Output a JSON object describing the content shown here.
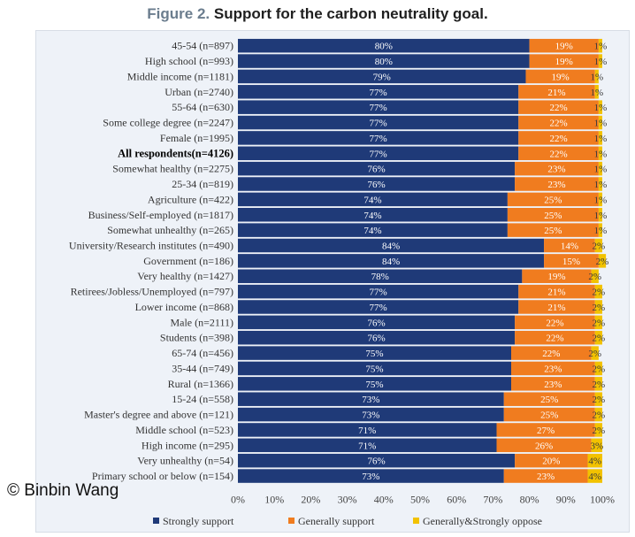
{
  "figure": {
    "number": "Figure 2.",
    "title": "Support for the carbon neutrality goal."
  },
  "copyright": "© Binbin Wang",
  "colors": {
    "strongly_support": "#1f3a78",
    "generally_support": "#f07c1f",
    "oppose": "#f2c200",
    "bold_label": "#000000"
  },
  "chart_data": {
    "type": "bar",
    "orientation": "horizontal",
    "stacked": true,
    "categories": [
      "45-54 (n=897)",
      "High school (n=993)",
      "Middle income (n=1181)",
      "Urban (n=2740)",
      "55-64 (n=630)",
      "Some college degree (n=2247)",
      "Female (n=1995)",
      "All respondents(n=4126)",
      "Somewhat healthy (n=2275)",
      "25-34 (n=819)",
      "Agriculture (n=422)",
      "Business/Self-employed (n=1817)",
      "Somewhat unhealthy (n=265)",
      "University/Research institutes (n=490)",
      "Government (n=186)",
      "Very healthy (n=1427)",
      "Retirees/Jobless/Unemployed (n=797)",
      "Lower income (n=868)",
      "Male (n=2111)",
      "Students (n=398)",
      "65-74 (n=456)",
      "35-44 (n=749)",
      "Rural (n=1366)",
      "15-24 (n=558)",
      "Master's degree and above (n=121)",
      "Middle school (n=523)",
      "High income (n=295)",
      "Very unhealthy (n=54)",
      "Primary school or below (n=154)"
    ],
    "bold_category": "All respondents(n=4126)",
    "series": [
      {
        "name": "Strongly support",
        "values": [
          80,
          80,
          79,
          77,
          77,
          77,
          77,
          77,
          76,
          76,
          74,
          74,
          74,
          84,
          84,
          78,
          77,
          77,
          76,
          76,
          75,
          75,
          75,
          73,
          73,
          71,
          71,
          76,
          73
        ],
        "labels": [
          "80%",
          "80%",
          "79%",
          "77%",
          "77%",
          "77%",
          "77%",
          "77%",
          "76%",
          "76%",
          "74%",
          "74%",
          "74%",
          "84%",
          "84%",
          "78%",
          "77%",
          "77%",
          "76%",
          "76%",
          "75%",
          "75%",
          "75%",
          "73%",
          "73%",
          "71%",
          "71%",
          "76%",
          "73%"
        ]
      },
      {
        "name": "Generally support",
        "values": [
          19,
          19,
          19,
          21,
          22,
          22,
          22,
          22,
          23,
          23,
          25,
          25,
          25,
          14,
          15,
          19,
          21,
          21,
          22,
          22,
          22,
          23,
          23,
          25,
          25,
          27,
          26,
          20,
          23
        ],
        "labels": [
          "19%",
          "19%",
          "19%",
          "21%",
          "22%",
          "22%",
          "22%",
          "22%",
          "23%",
          "23%",
          "25%",
          "25%",
          "25%",
          "14%",
          "15%",
          "19%",
          "21%",
          "21%",
          "22%",
          "22%",
          "22%",
          "23%",
          "23%",
          "25%",
          "25%",
          "27%",
          "26%",
          "20%",
          "23%"
        ]
      },
      {
        "name": "Generally&Strongly oppose",
        "values": [
          1,
          1,
          1,
          1,
          1,
          1,
          1,
          1,
          1,
          1,
          1,
          1,
          1,
          2,
          2,
          2,
          2,
          2,
          2,
          2,
          2,
          2,
          2,
          2,
          2,
          2,
          3,
          4,
          4
        ],
        "labels": [
          "1%",
          "1%",
          "1%",
          "1%",
          "1%",
          "1%",
          "1%",
          "1%",
          "1%",
          "1%",
          "1%",
          "1%",
          "1%",
          "2%",
          "2%",
          "2%",
          "2%",
          "2%",
          "2%",
          "2%",
          "2%",
          "2%",
          "2%",
          "2%",
          "2%",
          "2%",
          "3%",
          "4%",
          "4%"
        ]
      }
    ],
    "xlim": [
      0,
      100
    ],
    "xticks": [
      "0%",
      "10%",
      "20%",
      "30%",
      "40%",
      "50%",
      "60%",
      "70%",
      "80%",
      "90%",
      "100%"
    ],
    "legend_position": "bottom",
    "grid": false
  }
}
